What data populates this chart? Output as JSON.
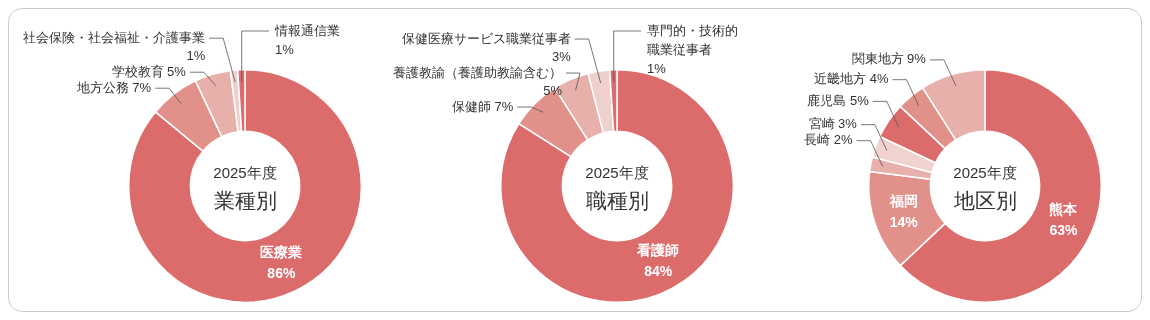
{
  "chart_data": [
    {
      "type": "donut",
      "title": "2025年度",
      "subtitle": "業種別",
      "categories": [
        "医療業",
        "地方公務",
        "学校教育",
        "社会保険・社会福祉・介護事業",
        "情報通信業"
      ],
      "values": [
        86,
        7,
        5,
        1,
        1
      ],
      "colors": [
        "#dc6c6c",
        "#e2908a",
        "#e8b0ab",
        "#eed0cd",
        "#dc6c6c"
      ],
      "value_labels": [
        "86%",
        "7%",
        "5%",
        "1%",
        "1%"
      ]
    },
    {
      "type": "donut",
      "title": "2025年度",
      "subtitle": "職種別",
      "categories": [
        "看護師",
        "保健師",
        "養護教諭（養護助教諭含む）",
        "保健医療サービス職業従事者",
        "専門的・技術的職業従事者"
      ],
      "values": [
        84,
        7,
        5,
        3,
        1
      ],
      "colors": [
        "#dc6c6c",
        "#e2908a",
        "#e8b0ab",
        "#eed0cd",
        "#dc6c6c"
      ],
      "value_labels": [
        "84%",
        "7%",
        "5%",
        "3%",
        "1%"
      ]
    },
    {
      "type": "donut",
      "title": "2025年度",
      "subtitle": "地区別",
      "categories": [
        "熊本",
        "福岡",
        "長崎",
        "宮崎",
        "鹿児島",
        "近畿地方",
        "関東地方"
      ],
      "values": [
        63,
        14,
        2,
        3,
        5,
        4,
        9
      ],
      "colors": [
        "#dc6c6c",
        "#e2908a",
        "#e8b0ab",
        "#f0d2cf",
        "#dc6c6c",
        "#e2908a",
        "#e8b0ab"
      ],
      "value_labels": [
        "63%",
        "14%",
        "2%",
        "3%",
        "5%",
        "4%",
        "9%"
      ]
    }
  ]
}
